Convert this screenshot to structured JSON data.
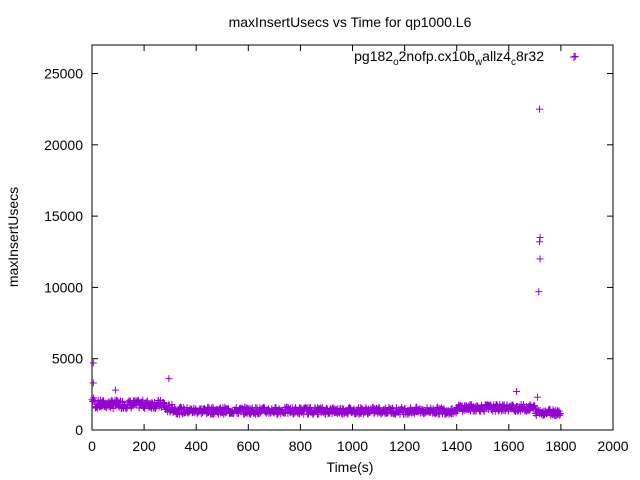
{
  "chart_data": {
    "type": "scatter",
    "title": "maxInsertUsecs vs Time for qp1000.L6",
    "xlabel": "Time(s)",
    "ylabel": "maxInsertUsecs",
    "xlim": [
      0,
      2000
    ],
    "ylim": [
      0,
      27000
    ],
    "xticks": [
      0,
      200,
      400,
      600,
      800,
      1000,
      1200,
      1400,
      1600,
      1800,
      2000
    ],
    "yticks": [
      0,
      5000,
      10000,
      15000,
      20000,
      25000
    ],
    "grid": false,
    "legend_position": "top-right",
    "marker": "+",
    "series": [
      {
        "name": "pg182_o2nofp.cx10b_wallz4_c8r32",
        "legend": {
          "parts": [
            {
              "text": "pg182",
              "sub": false
            },
            {
              "text": "o",
              "sub": true
            },
            {
              "text": "2nofp.cx10b",
              "sub": false
            },
            {
              "text": "w",
              "sub": true
            },
            {
              "text": "allz4",
              "sub": false
            },
            {
              "text": "c",
              "sub": true
            },
            {
              "text": "8r32",
              "sub": false
            }
          ]
        },
        "color": "#9400d3",
        "bands": [
          {
            "x0": 0,
            "x1": 10,
            "y0": 1900,
            "y1": 2300
          },
          {
            "x0": 10,
            "x1": 280,
            "y0": 1500,
            "y1": 2100
          },
          {
            "x0": 280,
            "x1": 320,
            "y0": 1200,
            "y1": 1800
          },
          {
            "x0": 320,
            "x1": 1400,
            "y0": 1100,
            "y1": 1600
          },
          {
            "x0": 1400,
            "x1": 1700,
            "y0": 1300,
            "y1": 1800
          },
          {
            "x0": 1700,
            "x1": 1800,
            "y0": 1000,
            "y1": 1500
          }
        ],
        "outliers": [
          {
            "x": 5,
            "y": 4700
          },
          {
            "x": 5,
            "y": 3300
          },
          {
            "x": 90,
            "y": 2800
          },
          {
            "x": 295,
            "y": 3600
          },
          {
            "x": 1630,
            "y": 2700
          },
          {
            "x": 1710,
            "y": 2300
          },
          {
            "x": 1715,
            "y": 9700
          },
          {
            "x": 1720,
            "y": 12000
          },
          {
            "x": 1718,
            "y": 13200
          },
          {
            "x": 1720,
            "y": 13500
          },
          {
            "x": 1718,
            "y": 22500
          },
          {
            "x": 1855,
            "y": 26200
          }
        ]
      }
    ]
  }
}
